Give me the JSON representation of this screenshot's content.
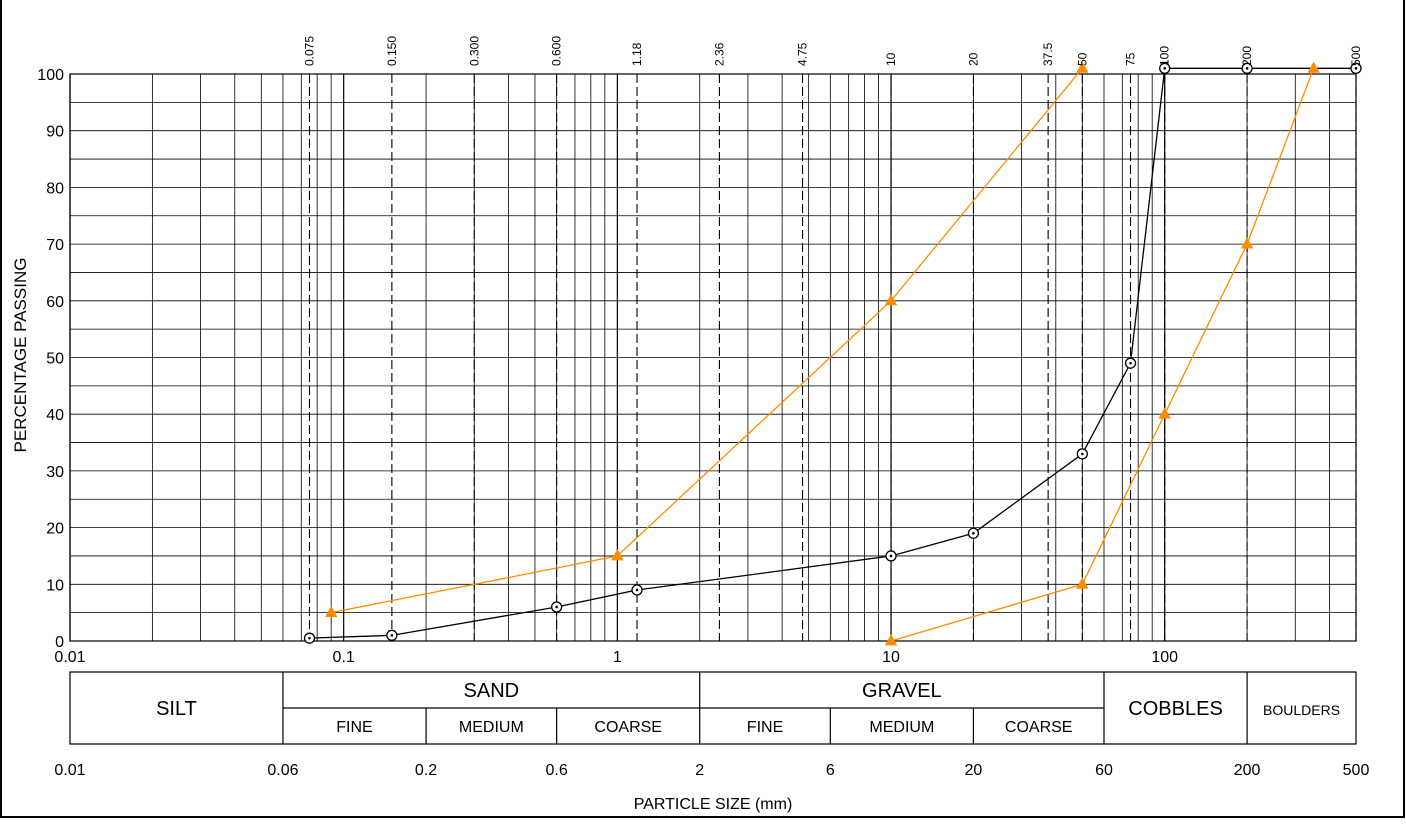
{
  "chart_data": {
    "type": "line",
    "title": "",
    "xlabel": "PARTICLE SIZE (mm)",
    "ylabel": "PERCENTAGE PASSING",
    "x_scale": "log",
    "xlim": [
      0.01,
      500
    ],
    "ylim": [
      0,
      100
    ],
    "x_tick_labels": [
      "0.01",
      "0.1",
      "1",
      "10",
      "100"
    ],
    "x_ticks": [
      0.01,
      0.1,
      1,
      10,
      100
    ],
    "y_ticks": [
      0,
      10,
      20,
      30,
      40,
      50,
      60,
      70,
      80,
      90,
      100
    ],
    "sieve_labels": [
      "0.075",
      "0.150",
      "0.300",
      "0.600",
      "1.18",
      "2.36",
      "4.75",
      "10",
      "20",
      "37.5",
      "50",
      "75",
      "100",
      "200",
      "500"
    ],
    "sieve_sizes": [
      0.075,
      0.15,
      0.3,
      0.6,
      1.18,
      2.36,
      4.75,
      10,
      20,
      37.5,
      50,
      75,
      100,
      200,
      500
    ],
    "grid": true,
    "series": [
      {
        "color": "#000000",
        "marker": "circle",
        "x": [
          0.075,
          0.15,
          0.6,
          1.18,
          10,
          20,
          50,
          75,
          100,
          200,
          500
        ],
        "y": [
          0.5,
          1,
          6,
          9,
          15,
          19,
          33,
          49,
          101,
          101,
          101
        ]
      },
      {
        "color": "#ff8c00",
        "marker": "triangle",
        "x": [
          0.09,
          1,
          10,
          50
        ],
        "y": [
          5,
          15,
          60,
          101
        ]
      },
      {
        "color": "#ff8c00",
        "marker": "triangle",
        "x": [
          10,
          50,
          100,
          200,
          350
        ],
        "y": [
          0,
          10,
          40,
          70,
          101
        ]
      }
    ],
    "classification": {
      "major": [
        {
          "label": "SILT",
          "from": 0.01,
          "to": 0.06
        },
        {
          "label": "SAND",
          "from": 0.06,
          "to": 2
        },
        {
          "label": "GRAVEL",
          "from": 2,
          "to": 60
        },
        {
          "label": "COBBLES",
          "from": 60,
          "to": 200
        },
        {
          "label": "BOULDERS",
          "from": 200,
          "to": 500
        }
      ],
      "minor": [
        {
          "label": "FINE",
          "from": 0.06,
          "to": 0.2
        },
        {
          "label": "MEDIUM",
          "from": 0.2,
          "to": 0.6
        },
        {
          "label": "COARSE",
          "from": 0.6,
          "to": 2
        },
        {
          "label": "FINE",
          "from": 2,
          "to": 6
        },
        {
          "label": "MEDIUM",
          "from": 6,
          "to": 20
        },
        {
          "label": "COARSE",
          "from": 20,
          "to": 60
        }
      ],
      "boundary_labels": [
        "0.01",
        "0.06",
        "0.2",
        "0.6",
        "2",
        "6",
        "20",
        "60",
        "200",
        "500"
      ],
      "boundary_values": [
        0.01,
        0.06,
        0.2,
        0.6,
        2,
        6,
        20,
        60,
        200,
        500
      ]
    }
  }
}
